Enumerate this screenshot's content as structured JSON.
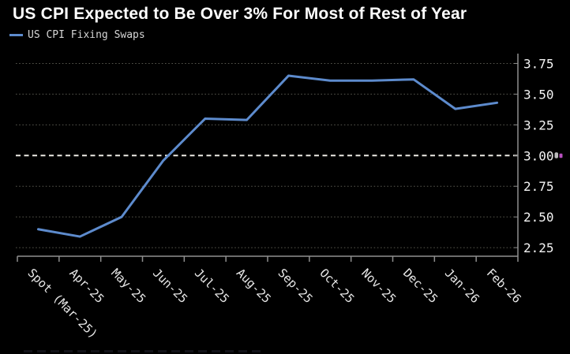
{
  "header": {
    "title": "US CPI Expected to Be Over 3% For Most of Rest of Year",
    "legend": {
      "label": "US CPI Fixing Swaps",
      "swatch_color": "#5d8bcd"
    }
  },
  "chart_data": {
    "type": "line",
    "title": "US CPI Expected to Be Over 3% For Most of Rest of Year",
    "categories": [
      "Spot (Mar-25)",
      "Apr-25",
      "May-25",
      "Jun-25",
      "Jul-25",
      "Aug-25",
      "Sep-25",
      "Oct-25",
      "Nov-25",
      "Dec-25",
      "Jan-26",
      "Feb-26"
    ],
    "series": [
      {
        "name": "US CPI Fixing Swaps",
        "color": "#5d8bcd",
        "values": [
          2.4,
          2.34,
          2.5,
          2.96,
          3.3,
          3.29,
          3.65,
          3.61,
          3.61,
          3.62,
          3.38,
          3.43
        ]
      }
    ],
    "ylim": [
      2.18,
      3.83
    ],
    "yticks": [
      2.25,
      2.5,
      2.75,
      3.0,
      3.25,
      3.5,
      3.75
    ],
    "ytick_labels": [
      "2.25",
      "2.50",
      "2.75",
      "3.00",
      "3.25",
      "3.50",
      "3.75"
    ],
    "threshold": {
      "value": 3.0,
      "label": "3.00",
      "style": "white-dashed"
    },
    "grid": "dotted-horizontal",
    "legend_position": "top-left",
    "y_axis_side": "right",
    "x_axis_label_rotation_deg": 45
  },
  "colors": {
    "background": "#000000",
    "title_text": "#ffffff",
    "axis_line": "#8f8f8f",
    "gridline": "#57574e",
    "threshold_line": "#eceae4",
    "tick_label": "#f4f4f4",
    "series_line": "#5d8bcd",
    "annotation_icon_magenta": "#b84fc0"
  }
}
